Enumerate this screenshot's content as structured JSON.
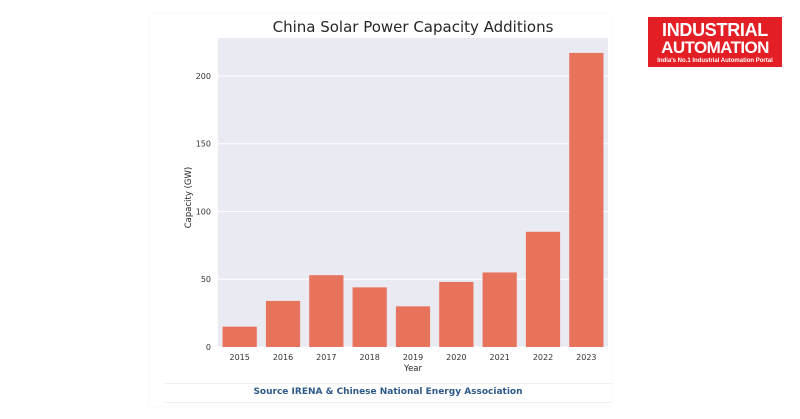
{
  "logo": {
    "line1": "INDUSTRIAL",
    "line2": "AUTOMATION",
    "tagline": "India's No.1 Industrial Automation Portal",
    "color": "#e31e24"
  },
  "source": "Source IRENA & Chinese National Energy Association",
  "chart_data": {
    "type": "bar",
    "title": "China Solar Power Capacity Additions",
    "xlabel": "Year",
    "ylabel": "Capacity (GW)",
    "categories": [
      "2015",
      "2016",
      "2017",
      "2018",
      "2019",
      "2020",
      "2021",
      "2022",
      "2023"
    ],
    "values": [
      15,
      34,
      53,
      44,
      30,
      48,
      55,
      85,
      217
    ],
    "ylim": [
      0,
      228
    ],
    "yticks": [
      0,
      50,
      100,
      150,
      200
    ],
    "grid": true,
    "bar_color": "#e8735c",
    "plot_background": "#eaeaf2"
  }
}
